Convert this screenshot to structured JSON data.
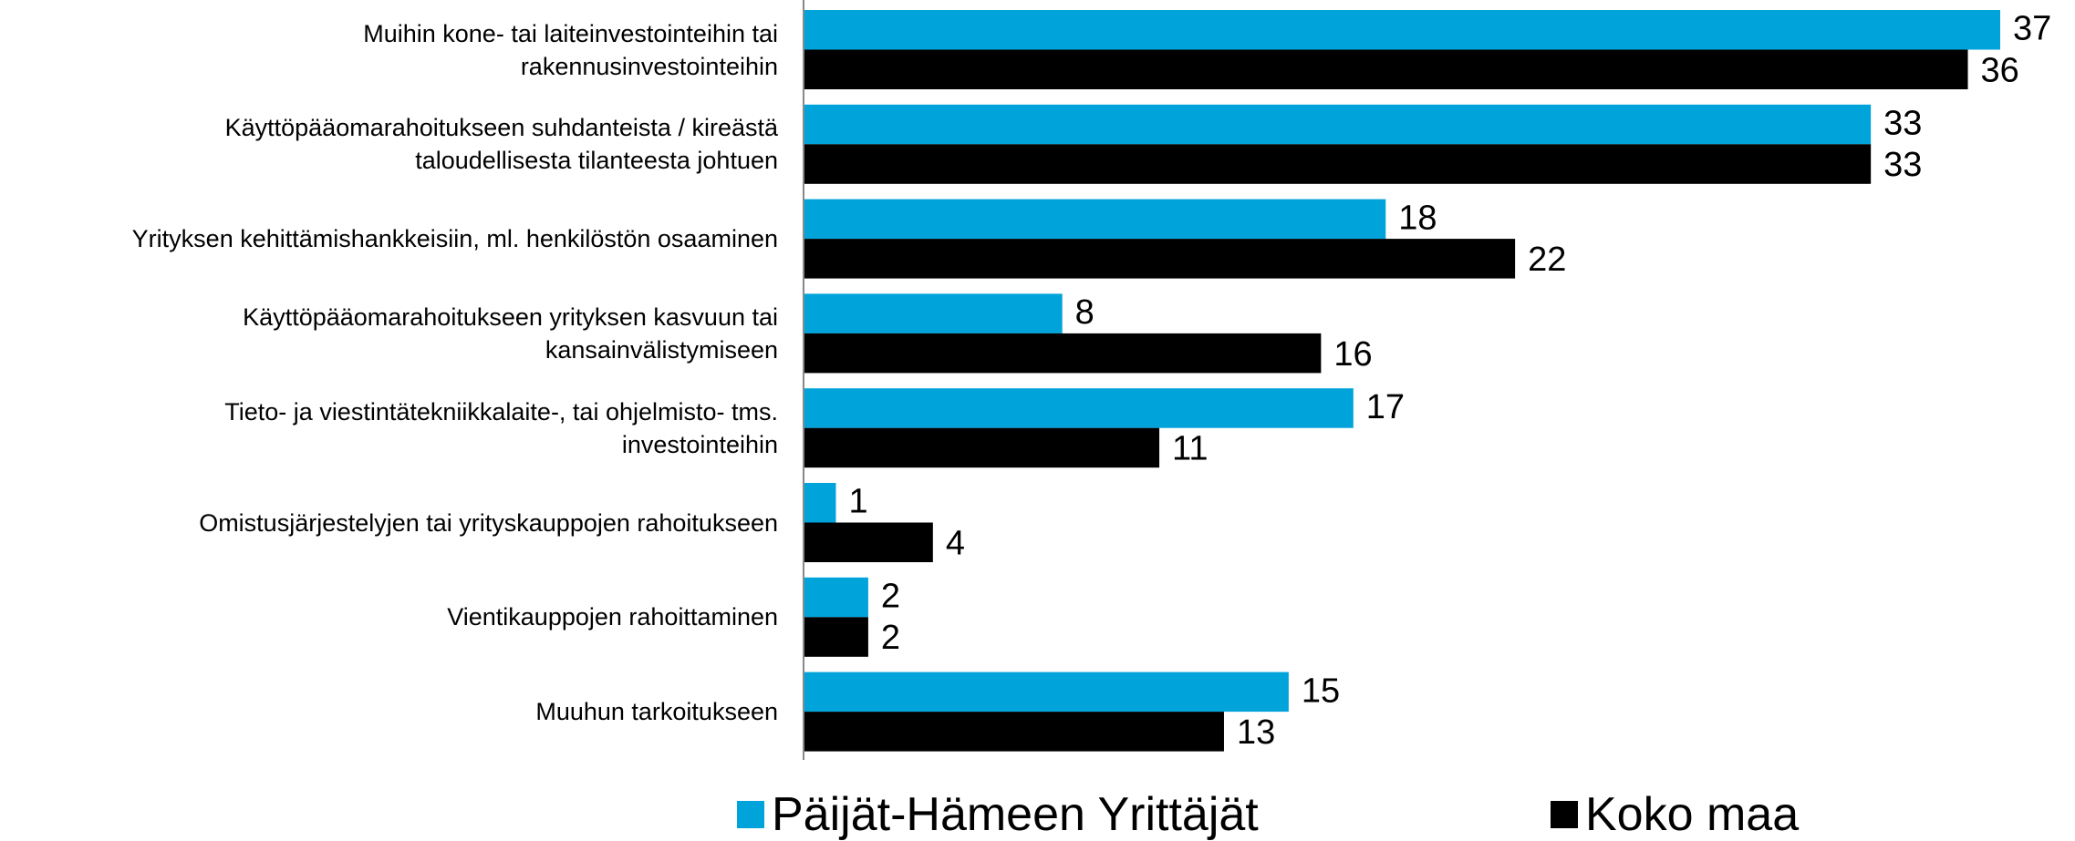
{
  "chart_data": {
    "type": "bar",
    "orientation": "horizontal",
    "categories": [
      "Muihin kone- tai laiteinvestointeihin tai\nrakennusinvestointeihin",
      "Käyttöpääomarahoitukseen suhdanteista / kireästä\ntaloudellisesta tilanteesta johtuen",
      "Yrityksen kehittämishankkeisiin, ml. henkilöstön osaaminen",
      "Käyttöpääomarahoitukseen yrityksen kasvuun tai\nkansainvälistymiseen",
      "Tieto- ja viestintätekniikkalaite-, tai ohjelmisto- tms.\ninvestointeihin",
      "Omistusjärjestelyjen tai yrityskauppojen rahoitukseen",
      "Vientikauppojen rahoittaminen",
      "Muuhun tarkoitukseen"
    ],
    "series": [
      {
        "name": "Päijät-Hämeen Yrittäjät",
        "color": "#00a3da",
        "values": [
          37,
          33,
          18,
          8,
          17,
          1,
          2,
          15
        ]
      },
      {
        "name": "Koko maa",
        "color": "#000000",
        "values": [
          36,
          33,
          22,
          16,
          11,
          4,
          2,
          13
        ]
      }
    ],
    "xlim": [
      0,
      40
    ],
    "legend": "bottom"
  }
}
